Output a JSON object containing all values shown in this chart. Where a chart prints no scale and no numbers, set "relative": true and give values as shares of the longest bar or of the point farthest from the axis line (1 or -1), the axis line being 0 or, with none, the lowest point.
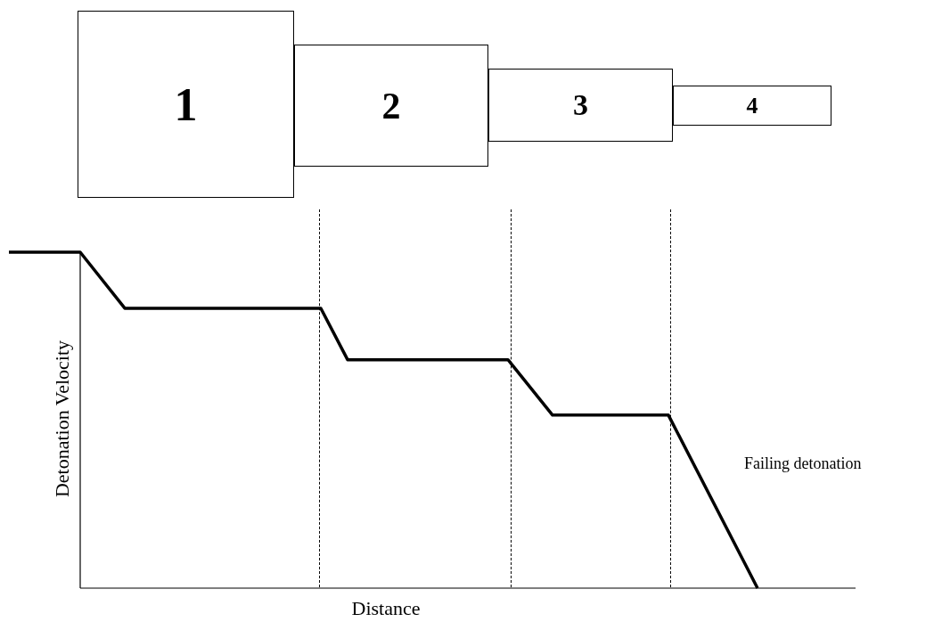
{
  "chart_data": {
    "type": "line",
    "xlabel": "Distance",
    "ylabel": "Detonation Velocity",
    "relative": true,
    "color": "#000000",
    "marker": "none",
    "line_style": "solid",
    "legend": false,
    "categories": [
      null,
      null,
      null,
      null,
      null,
      null,
      null,
      null,
      null,
      null,
      null,
      null,
      null,
      null,
      null,
      null,
      null,
      null,
      null,
      null,
      null,
      null,
      null,
      null,
      null,
      null,
      null,
      null,
      null,
      null,
      null,
      null,
      null,
      null,
      null,
      null,
      null,
      null,
      null,
      null,
      null,
      null,
      null,
      null,
      null,
      null,
      null,
      null,
      null,
      null,
      null,
      null,
      null,
      null,
      null,
      null,
      null,
      null,
      null,
      null,
      null,
      null,
      null,
      null,
      null,
      null,
      null,
      null,
      null,
      null,
      null,
      null,
      null,
      null,
      null,
      null,
      null,
      null,
      null,
      null,
      null,
      null,
      null,
      null,
      null,
      null,
      null,
      null,
      null,
      null,
      null,
      null,
      null,
      null,
      null,
      null
    ],
    "values": [
      1,
      null,
      null,
      null,
      null,
      null,
      null,
      null,
      1,
      null,
      null,
      null,
      null,
      0.833,
      null,
      null,
      null,
      null,
      null,
      null,
      null,
      null,
      null,
      null,
      null,
      null,
      null,
      null,
      null,
      null,
      null,
      null,
      null,
      null,
      null,
      0.833,
      null,
      null,
      0.68,
      null,
      null,
      null,
      null,
      null,
      null,
      null,
      null,
      null,
      null,
      null,
      null,
      null,
      null,
      null,
      null,
      null,
      0.68,
      null,
      null,
      null,
      null,
      0.515,
      null,
      null,
      null,
      null,
      null,
      null,
      null,
      null,
      null,
      null,
      null,
      null,
      0.515,
      null,
      null,
      null,
      null,
      null,
      null,
      null,
      null,
      null,
      0.0,
      null,
      null,
      null,
      null,
      null,
      null,
      null,
      null,
      null,
      null,
      null
    ],
    "annotations": [
      "Failing detonation",
      "1",
      "2",
      "3",
      "4"
    ]
  }
}
